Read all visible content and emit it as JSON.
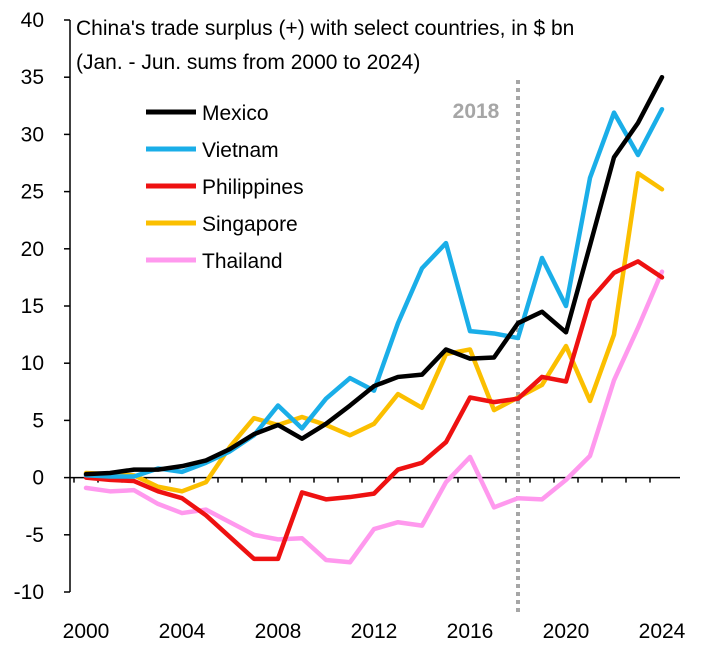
{
  "chart_data": {
    "type": "line",
    "title_lines": [
      "China's trade surplus (+) with select countries, in $ bn",
      "(Jan. - Jun. sums from 2000 to 2024)"
    ],
    "xlabel": "",
    "ylabel": "",
    "xlim": [
      2000,
      2024
    ],
    "ylim": [
      -10,
      40
    ],
    "x_ticks": [
      2000,
      2004,
      2008,
      2012,
      2016,
      2020,
      2024
    ],
    "y_ticks": [
      -10,
      -5,
      0,
      5,
      10,
      15,
      20,
      25,
      30,
      35,
      40
    ],
    "grid": false,
    "legend_position": "top-left",
    "annotation": {
      "label": "2018",
      "x": 2018,
      "style": "dotted vertical line"
    },
    "x": [
      2000,
      2001,
      2002,
      2003,
      2004,
      2005,
      2006,
      2007,
      2008,
      2009,
      2010,
      2011,
      2012,
      2013,
      2014,
      2015,
      2016,
      2017,
      2018,
      2019,
      2020,
      2021,
      2022,
      2023,
      2024
    ],
    "series": [
      {
        "name": "Mexico",
        "color": "#000000",
        "values": [
          0.3,
          0.4,
          0.7,
          0.7,
          1.0,
          1.5,
          2.5,
          3.8,
          4.6,
          3.4,
          4.7,
          6.3,
          8.0,
          8.8,
          9.0,
          11.2,
          10.4,
          10.5,
          13.5,
          14.5,
          12.7,
          20.3,
          28.0,
          31.0,
          35.0
        ]
      },
      {
        "name": "Vietnam",
        "color": "#1aaee8",
        "values": [
          0.2,
          0.1,
          0.1,
          0.8,
          0.5,
          1.3,
          2.3,
          3.7,
          6.3,
          4.3,
          6.9,
          8.7,
          7.6,
          13.5,
          18.3,
          20.5,
          12.8,
          12.6,
          12.2,
          19.2,
          15.0,
          26.2,
          31.9,
          28.2,
          32.2
        ]
      },
      {
        "name": "Philippines",
        "color": "#ee1111",
        "values": [
          0.0,
          -0.2,
          -0.3,
          -1.2,
          -1.8,
          -3.3,
          -5.2,
          -7.1,
          -7.1,
          -1.3,
          -1.9,
          -1.7,
          -1.4,
          0.7,
          1.3,
          3.1,
          7.0,
          6.6,
          6.9,
          8.8,
          8.4,
          15.5,
          17.9,
          18.9,
          17.5
        ]
      },
      {
        "name": "Singapore",
        "color": "#fbbf00",
        "values": [
          0.4,
          0.3,
          0.2,
          -0.8,
          -1.2,
          -0.4,
          2.7,
          5.2,
          4.6,
          5.3,
          4.6,
          3.7,
          4.7,
          7.3,
          6.1,
          10.8,
          11.2,
          5.9,
          7.0,
          8.1,
          11.5,
          6.7,
          12.5,
          26.6,
          25.2
        ]
      },
      {
        "name": "Thailand",
        "color": "#ff99ee",
        "values": [
          -0.9,
          -1.2,
          -1.1,
          -2.3,
          -3.1,
          -2.8,
          -3.9,
          -5.0,
          -5.4,
          -5.3,
          -7.2,
          -7.4,
          -4.5,
          -3.9,
          -4.2,
          -0.4,
          1.8,
          -2.6,
          -1.8,
          -1.9,
          -0.2,
          1.9,
          8.5,
          13.1,
          18.0
        ]
      }
    ]
  }
}
